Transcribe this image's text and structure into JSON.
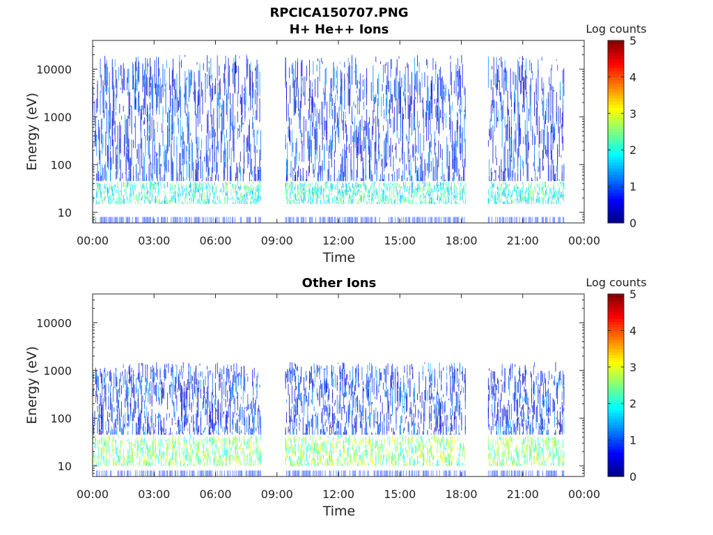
{
  "figure": {
    "title": "RPCICA150707.PNG",
    "colorbar_label": "Log counts",
    "colorbar_ticks": [
      "0",
      "1",
      "2",
      "3",
      "4",
      "5"
    ],
    "colormap": [
      "#00007f",
      "#0000ff",
      "#007fff",
      "#00ffff",
      "#7fff7f",
      "#ffff00",
      "#ff7f00",
      "#ff0000",
      "#7f0000"
    ]
  },
  "chart_data": [
    {
      "type": "heatmap",
      "title": "H+ He++ Ions",
      "xlabel": "Time",
      "ylabel": "Energy (eV)",
      "x_ticks": [
        "00:00",
        "03:00",
        "06:00",
        "09:00",
        "12:00",
        "15:00",
        "18:00",
        "21:00",
        "00:00"
      ],
      "x_range_hours": [
        0,
        24
      ],
      "y_ticks": [
        "10",
        "100",
        "1000",
        "10000"
      ],
      "y_scale": "log",
      "y_range_ev": [
        6,
        40000
      ],
      "color_scale": "Log counts",
      "color_range": [
        0,
        5
      ],
      "data_gaps_hours": [
        [
          8.2,
          9.4
        ],
        [
          18.2,
          19.3
        ],
        [
          23.0,
          24.0
        ]
      ],
      "description_bands": [
        {
          "energy_ev": [
            15,
            45
          ],
          "log_counts": 2.0
        },
        {
          "energy_ev": [
            45,
            20000
          ],
          "log_counts": 0.8
        }
      ]
    },
    {
      "type": "heatmap",
      "title": "Other Ions",
      "xlabel": "Time",
      "ylabel": "Energy (eV)",
      "x_ticks": [
        "00:00",
        "03:00",
        "06:00",
        "09:00",
        "12:00",
        "15:00",
        "18:00",
        "21:00",
        "00:00"
      ],
      "x_range_hours": [
        0,
        24
      ],
      "y_ticks": [
        "10",
        "100",
        "1000",
        "10000"
      ],
      "y_scale": "log",
      "y_range_ev": [
        6,
        40000
      ],
      "color_scale": "Log counts",
      "color_range": [
        0,
        5
      ],
      "data_gaps_hours": [
        [
          8.2,
          9.4
        ],
        [
          18.2,
          19.3
        ],
        [
          23.0,
          24.0
        ]
      ],
      "description_bands": [
        {
          "energy_ev": [
            10,
            45
          ],
          "log_counts": 2.5
        },
        {
          "energy_ev": [
            45,
            1500
          ],
          "log_counts": 0.8
        }
      ]
    }
  ]
}
